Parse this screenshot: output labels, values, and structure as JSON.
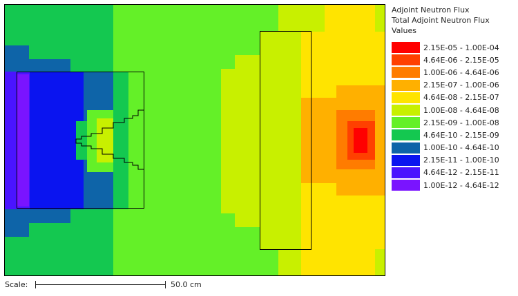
{
  "legend": {
    "title_lines": [
      "Adjoint Neutron Flux",
      "Total Adjoint Neutron Flux",
      "Values"
    ],
    "bins": [
      {
        "label": "2.15E-05 - 1.00E-04",
        "color": "#ff0000"
      },
      {
        "label": "4.64E-06 - 2.15E-05",
        "color": "#ff4000"
      },
      {
        "label": "1.00E-06 - 4.64E-06",
        "color": "#ff7c00"
      },
      {
        "label": "2.15E-07 - 1.00E-06",
        "color": "#ffb000"
      },
      {
        "label": "4.64E-08 - 2.15E-07",
        "color": "#ffe400"
      },
      {
        "label": "1.00E-08 - 4.64E-08",
        "color": "#c8f000"
      },
      {
        "label": "2.15E-09 - 1.00E-08",
        "color": "#64f028"
      },
      {
        "label": "4.64E-10 - 2.15E-09",
        "color": "#14c850"
      },
      {
        "label": "1.00E-10 - 4.64E-10",
        "color": "#0e64a8"
      },
      {
        "label": "2.15E-11 - 1.00E-10",
        "color": "#0a14f0"
      },
      {
        "label": "4.64E-12 - 2.15E-11",
        "color": "#4a14ff"
      },
      {
        "label": "1.00E-12 - 4.64E-12",
        "color": "#7a14ff"
      }
    ]
  },
  "scale": {
    "label": "Scale:",
    "value": "50.0 cm"
  }
}
